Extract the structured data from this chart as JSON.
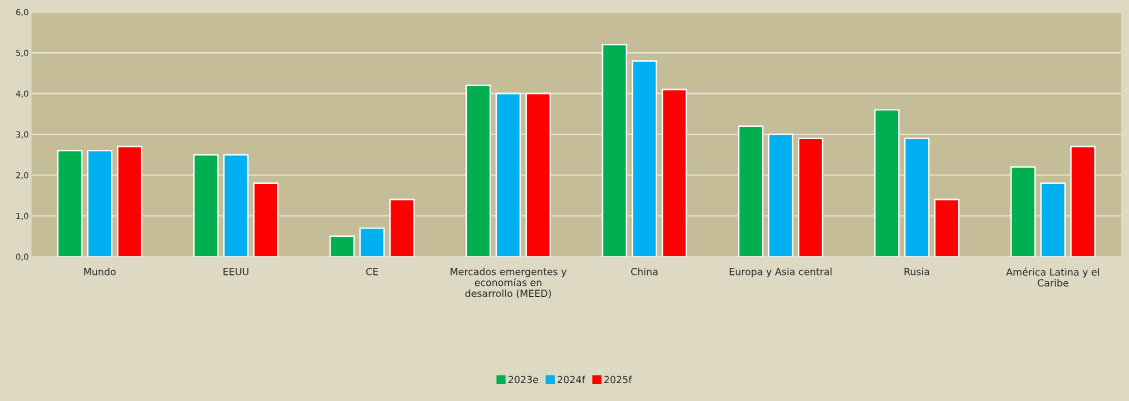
{
  "chart_data": {
    "type": "bar",
    "categories": [
      "Mundo",
      "EEUU",
      "CE",
      "Mercados emergentes y economías en desarrollo (MEED)",
      "China",
      "Europa y Asia central",
      "Rusia",
      "América Latina y el Caribe"
    ],
    "series": [
      {
        "name": "2023e",
        "color": "#00b050",
        "values": [
          2.6,
          2.5,
          0.5,
          4.2,
          5.2,
          3.2,
          3.6,
          2.2
        ]
      },
      {
        "name": "2024f",
        "color": "#00b0f0",
        "values": [
          2.6,
          2.5,
          0.7,
          4.0,
          4.8,
          3.0,
          2.9,
          1.8
        ]
      },
      {
        "name": "2025f",
        "color": "#ff0000",
        "values": [
          2.7,
          1.8,
          1.4,
          4.0,
          4.1,
          2.9,
          1.4,
          2.7
        ]
      }
    ],
    "ylim": [
      0,
      6
    ],
    "yticks": [
      {
        "value": 0,
        "label": "0,0"
      },
      {
        "value": 1,
        "label": "1,0"
      },
      {
        "value": 2,
        "label": "2,0"
      },
      {
        "value": 3,
        "label": "3,0"
      },
      {
        "value": 4,
        "label": "4,0"
      },
      {
        "value": 5,
        "label": "5,0"
      },
      {
        "value": 6,
        "label": "6,0"
      }
    ],
    "grid": "y",
    "legend": "bottom"
  }
}
